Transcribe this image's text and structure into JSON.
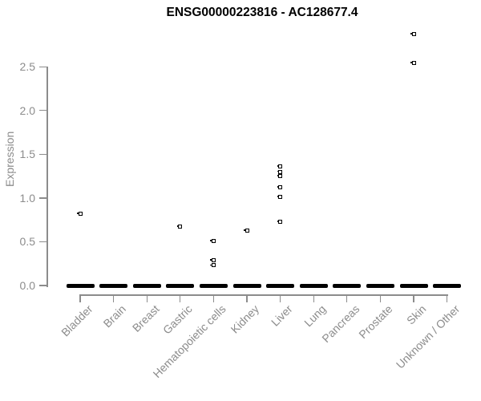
{
  "chart_data": {
    "type": "scatter",
    "title": "ENSG00000223816 - AC128677.4",
    "xlabel": "",
    "ylabel": "Expression",
    "ylim": [
      0,
      2.9
    ],
    "yticks": [
      "0.0",
      "0.5",
      "1.0",
      "1.5",
      "2.0",
      "2.5"
    ],
    "grid": false,
    "legend": "none",
    "categories": [
      "Bladder",
      "Brain",
      "Breast",
      "Gastric",
      "Hematopoietic cells",
      "Kidney",
      "Liver",
      "Lung",
      "Pancreas",
      "Prostate",
      "Skin",
      "Unknown / Other"
    ],
    "zero_clusters": "every category has a dense cluster of overlapping points at expression 0, appearing as a thick black dash",
    "points": [
      {
        "category": "Bladder",
        "value": 0.82
      },
      {
        "category": "Gastric",
        "value": 0.67
      },
      {
        "category": "Hematopoietic cells",
        "value": 0.51
      },
      {
        "category": "Hematopoietic cells",
        "value": 0.29
      },
      {
        "category": "Hematopoietic cells",
        "value": 0.23
      },
      {
        "category": "Kidney",
        "value": 0.63
      },
      {
        "category": "Liver",
        "value": 1.36
      },
      {
        "category": "Liver",
        "value": 1.3
      },
      {
        "category": "Liver",
        "value": 1.25
      },
      {
        "category": "Liver",
        "value": 1.12
      },
      {
        "category": "Liver",
        "value": 1.01
      },
      {
        "category": "Liver",
        "value": 0.73
      },
      {
        "category": "Skin",
        "value": 2.87
      },
      {
        "category": "Skin",
        "value": 2.54
      }
    ],
    "colors": {
      "point": "#000000",
      "axis": "#8c8c8c",
      "title": "#000000"
    }
  }
}
